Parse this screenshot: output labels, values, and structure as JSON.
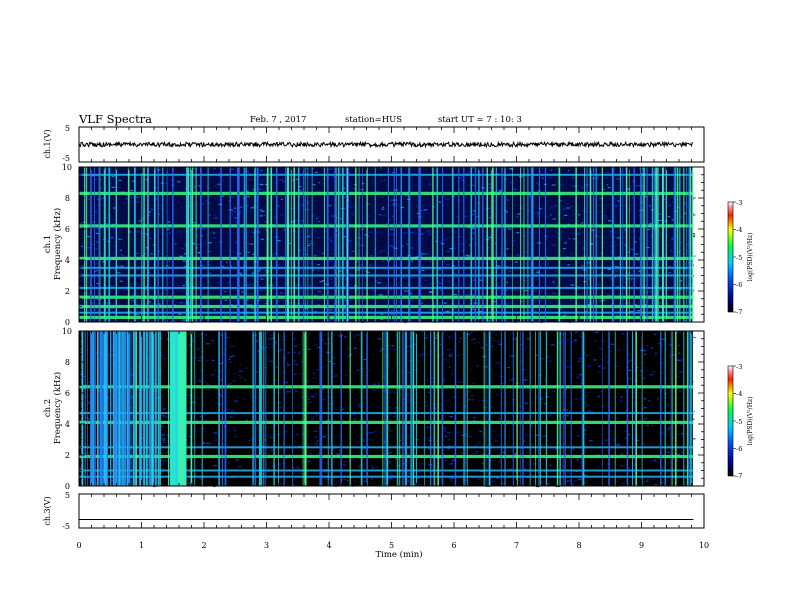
{
  "header": {
    "title": "VLF Spectra",
    "date": "Feb. 7 , 2017",
    "station": "station=HUS",
    "start": "start  UT =   7 : 10: 3"
  },
  "chart_data": [
    {
      "type": "line",
      "panel": "ch1-waveform",
      "ylabel": "ch.1(V)",
      "ylim": [
        -5,
        5
      ],
      "y_ticks": [
        "5",
        "-5"
      ],
      "x_range_min": [
        0,
        9.83
      ],
      "trace_level": 0
    },
    {
      "type": "heatmap",
      "panel": "ch1-spectrogram",
      "ylabel": "ch.1\nFrequency (kHz)",
      "ylim": [
        0,
        10
      ],
      "y_ticks": [
        "0",
        "2",
        "4",
        "6",
        "8",
        "10"
      ],
      "x_range_min": [
        0,
        9.83
      ],
      "bands_khz": [
        0.3,
        0.6,
        1.0,
        1.6,
        2.2,
        3.0,
        3.5,
        4.1,
        6.2,
        8.3,
        9.5
      ],
      "colorbar": {
        "label": "log(PSD)(V²/Hz)",
        "range": [
          -7,
          -3
        ],
        "ticks": [
          "-3",
          "-4",
          "-5",
          "-6",
          "-7"
        ]
      }
    },
    {
      "type": "heatmap",
      "panel": "ch2-spectrogram",
      "ylabel": "ch.2\nFrequency (kHz)",
      "ylim": [
        0,
        10
      ],
      "y_ticks": [
        "0",
        "2",
        "4",
        "6",
        "8",
        "10"
      ],
      "x_range_min": [
        0,
        9.83
      ],
      "bands_khz": [
        0.6,
        1.0,
        1.9,
        2.5,
        4.1,
        4.7,
        6.4
      ],
      "colorbar": {
        "label": "log(PSD)(V²/Hz)",
        "range": [
          -7,
          -3
        ],
        "ticks": [
          "-3",
          "-4",
          "-5",
          "-6",
          "-7"
        ]
      }
    },
    {
      "type": "line",
      "panel": "ch3-waveform",
      "ylabel": "ch.3(V)",
      "ylim": [
        -5,
        5
      ],
      "y_ticks": [
        "5",
        "-5"
      ],
      "x_range_min": [
        0,
        9.83
      ],
      "trace_level": -2.5
    }
  ],
  "x_axis": {
    "label": "Time (min)",
    "range": [
      0,
      10
    ],
    "ticks": [
      "0",
      "1",
      "2",
      "3",
      "4",
      "5",
      "6",
      "7",
      "8",
      "9",
      "10"
    ]
  }
}
